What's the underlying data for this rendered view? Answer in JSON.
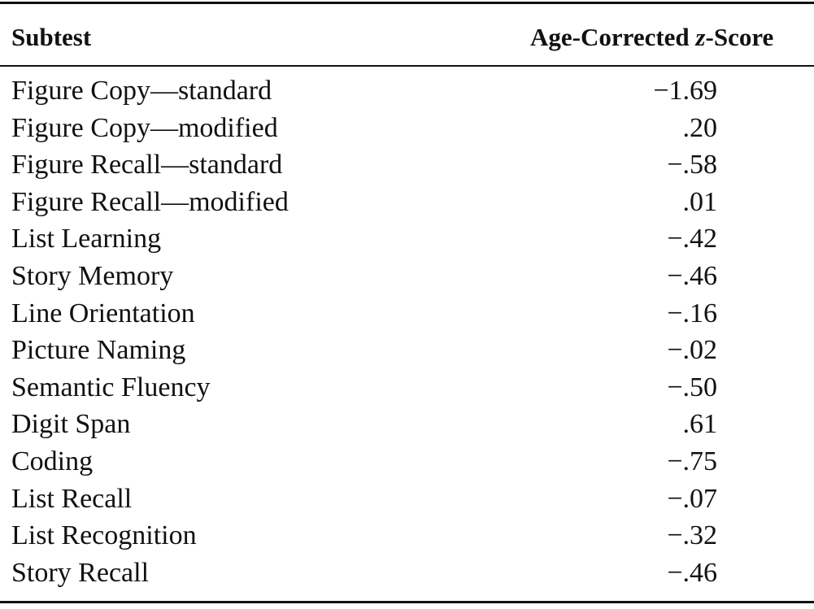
{
  "table": {
    "header": {
      "subtest": "Subtest",
      "score": {
        "before": "Age-Corrected ",
        "italic": "z",
        "after": "-Score"
      }
    },
    "rows": [
      [
        "Figure Copy—standard",
        "−1.69"
      ],
      [
        "Figure Copy—modified",
        ".20"
      ],
      [
        "Figure Recall—standard",
        "−.58"
      ],
      [
        "Figure Recall—modified",
        ".01"
      ],
      [
        "List Learning",
        "−.42"
      ],
      [
        "Story Memory",
        "−.46"
      ],
      [
        "Line Orientation",
        "−.16"
      ],
      [
        "Picture Naming",
        "−.02"
      ],
      [
        "Semantic Fluency",
        "−.50"
      ],
      [
        "Digit Span",
        ".61"
      ],
      [
        "Coding",
        "−.75"
      ],
      [
        "List Recall",
        "−.07"
      ],
      [
        "List Recognition",
        "−.32"
      ],
      [
        "Story Recall",
        "−.46"
      ]
    ]
  }
}
